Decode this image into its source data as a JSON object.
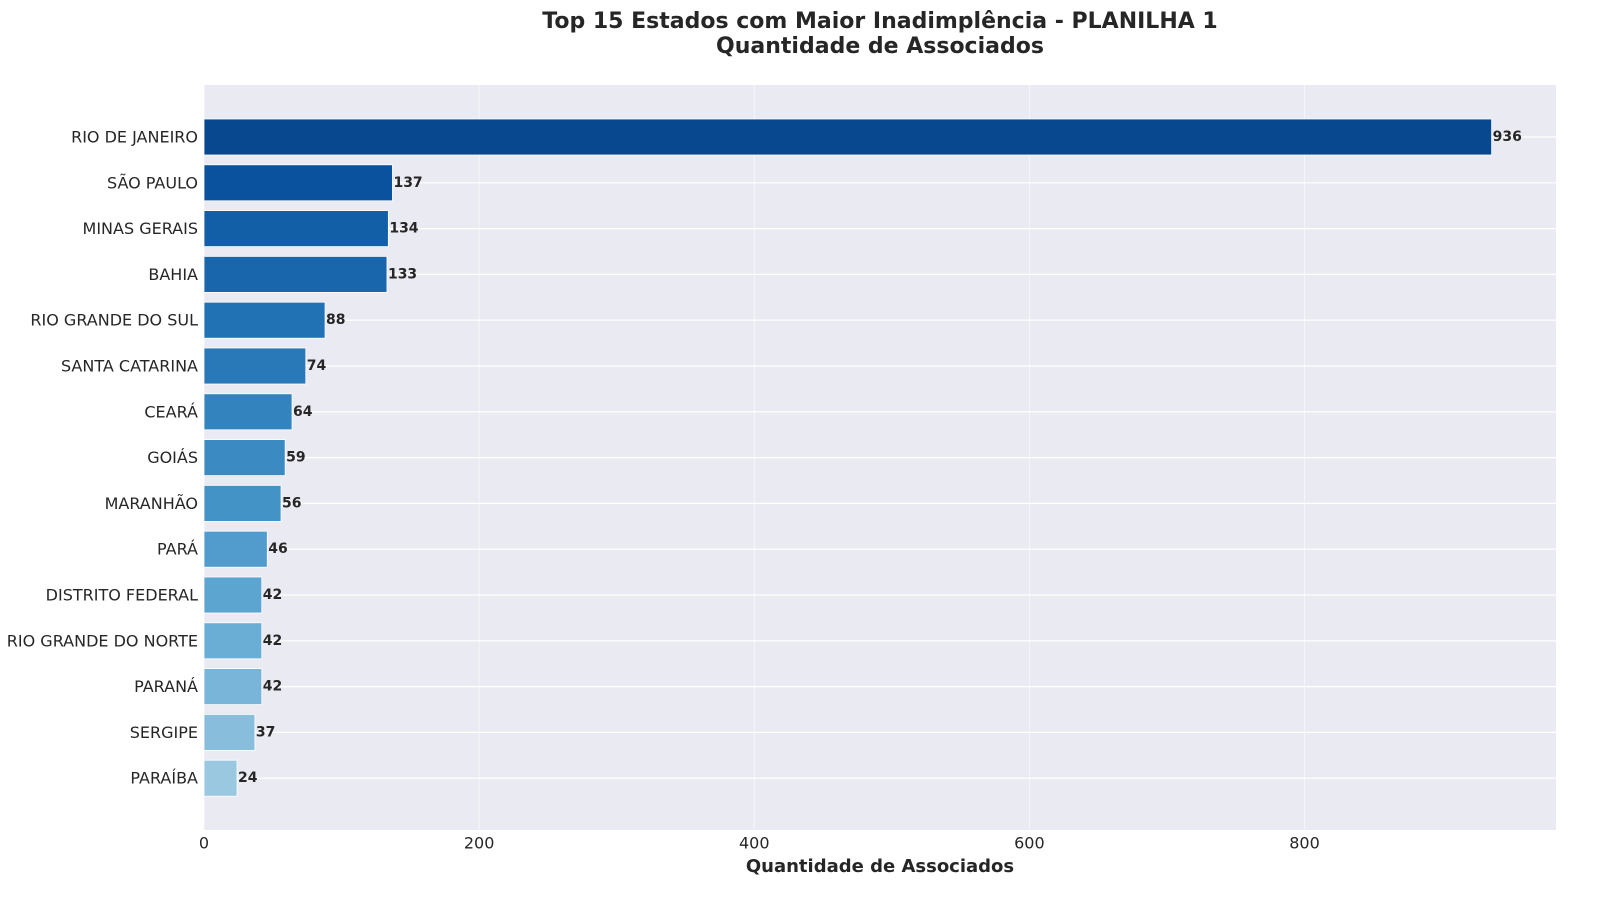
{
  "chart_data": {
    "type": "barh",
    "title": "Top 15 Estados com Maior Inadimplência - PLANILHA 1",
    "subtitle": "Quantidade de Associados",
    "xlabel": "Quantidade de Associados",
    "categories": [
      "RIO DE JANEIRO",
      "SÃO PAULO",
      "MINAS GERAIS",
      "BAHIA",
      "RIO GRANDE DO SUL",
      "SANTA CATARINA",
      "CEARÁ",
      "GOIÁS",
      "MARANHÃO",
      "PARÁ",
      "DISTRITO FEDERAL",
      "RIO GRANDE DO NORTE",
      "PARANÁ",
      "SERGIPE",
      "PARAÍBA"
    ],
    "values": [
      936,
      137,
      134,
      133,
      88,
      74,
      64,
      59,
      56,
      46,
      42,
      42,
      42,
      37,
      24
    ],
    "colors": [
      "#08488e",
      "#0a529d",
      "#135fa7",
      "#1966ad",
      "#2171b5",
      "#2979b9",
      "#3383be",
      "#3b8bc2",
      "#4493c7",
      "#519ccc",
      "#5da5d1",
      "#6aaed6",
      "#79b5d9",
      "#88bedc",
      "#9ac8e0"
    ],
    "xlim": [
      0,
      982.8
    ],
    "xticks": [
      0,
      200,
      400,
      600,
      800
    ],
    "grid": true
  }
}
